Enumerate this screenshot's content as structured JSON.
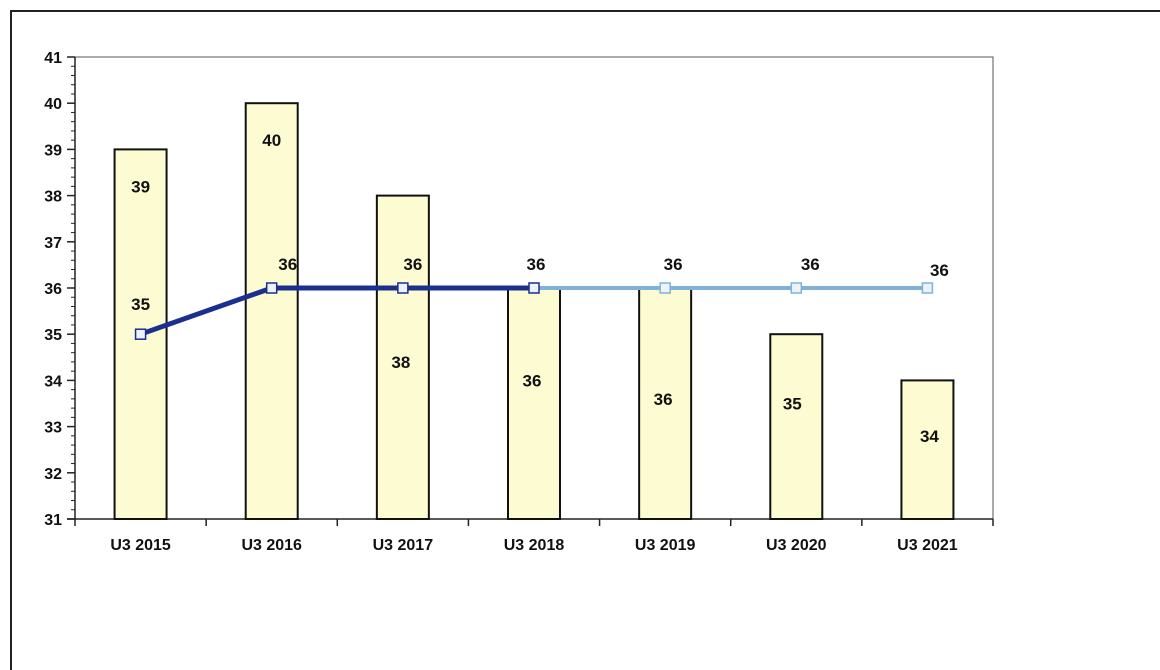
{
  "chart_data": {
    "type": "bar",
    "categories": [
      "U3 2015",
      "U3 2016",
      "U3  2017",
      "U3 2018",
      "U3 2019",
      "U3 2020",
      "U3 2021"
    ],
    "series": [
      {
        "type": "bar",
        "values": [
          39,
          40,
          38,
          36,
          36,
          35,
          34
        ],
        "color": "#fdfbd1"
      },
      {
        "type": "line",
        "values": [
          35,
          36,
          36,
          36,
          36,
          36,
          36
        ],
        "colors": [
          "#1b2f8f",
          "#7fb2da"
        ],
        "color_change_index": 3
      }
    ],
    "bar_labels": [
      "39",
      "40",
      "38",
      "36",
      "36",
      "35",
      "34"
    ],
    "line_labels": [
      "35",
      "36",
      "36",
      "36",
      "36",
      "36",
      "36"
    ],
    "ylim": [
      31,
      41
    ],
    "yticks": [
      "31",
      "32",
      "33",
      "34",
      "35",
      "36",
      "37",
      "38",
      "39",
      "40",
      "41"
    ],
    "grid": false,
    "legend": "none",
    "title": "",
    "xlabel": "",
    "ylabel": ""
  }
}
